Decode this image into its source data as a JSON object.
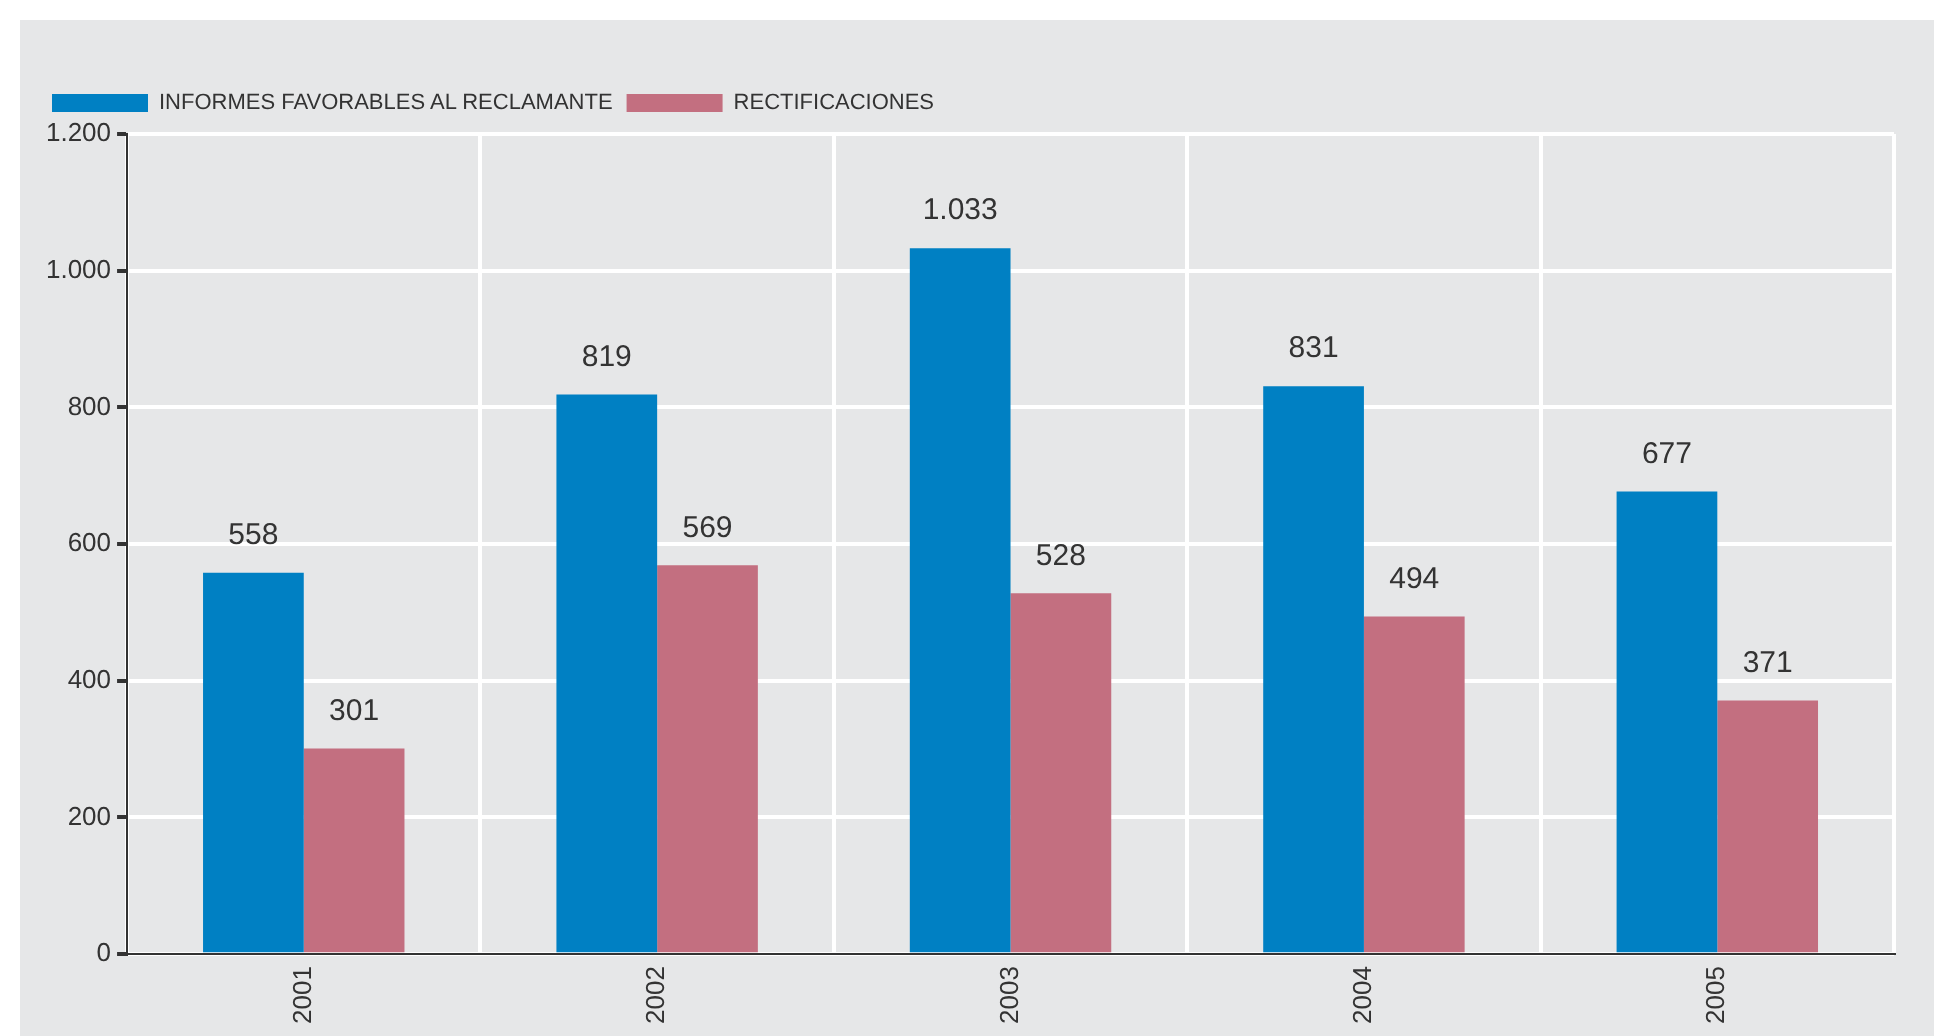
{
  "chart_data": {
    "type": "bar",
    "categories": [
      "2001",
      "2002",
      "2003",
      "2004",
      "2005"
    ],
    "series": [
      {
        "name": "INFORMES FAVORABLES AL RECLAMANTE",
        "color": "#0080c3",
        "values": [
          558,
          819,
          1033,
          831,
          677
        ],
        "value_labels": [
          "558",
          "819",
          "1.033",
          "831",
          "677"
        ]
      },
      {
        "name": "RECTIFICACIONES",
        "color": "#c36f80",
        "values": [
          301,
          569,
          528,
          494,
          371
        ],
        "value_labels": [
          "301",
          "569",
          "528",
          "494",
          "371"
        ]
      }
    ],
    "ylim": [
      0,
      1200
    ],
    "yticks": [
      0,
      200,
      400,
      600,
      800,
      {
        "value": 1000,
        "label": "1.000"
      },
      {
        "value": 1200,
        "label": "1.200"
      }
    ],
    "grid": true,
    "legend": "top left"
  }
}
